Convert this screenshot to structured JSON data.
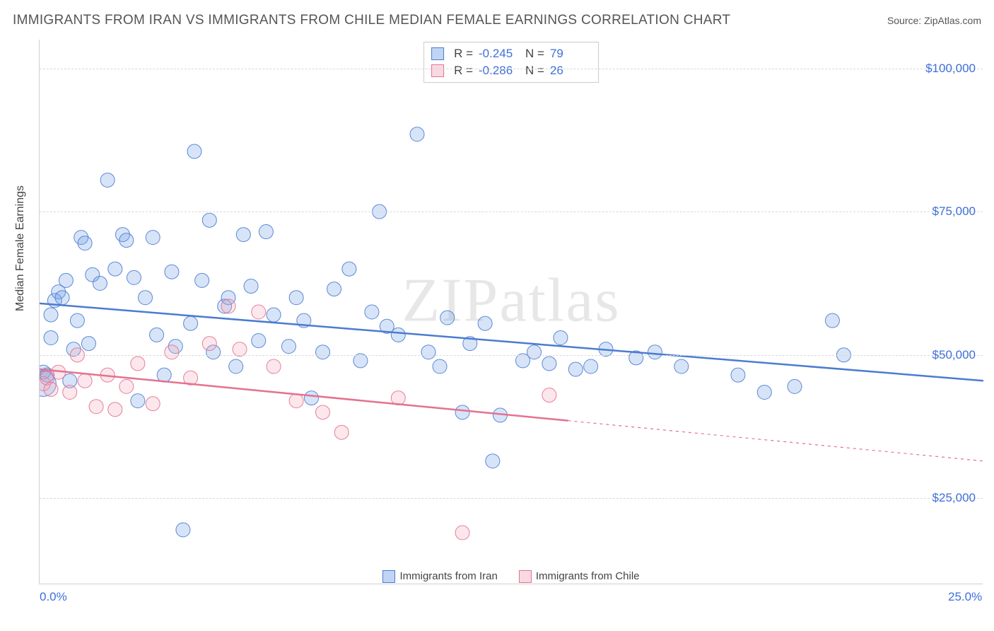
{
  "title": "IMMIGRANTS FROM IRAN VS IMMIGRANTS FROM CHILE MEDIAN FEMALE EARNINGS CORRELATION CHART",
  "source": "Source: ZipAtlas.com",
  "watermark": "ZIPatlas",
  "y_axis_title": "Median Female Earnings",
  "chart": {
    "type": "scatter",
    "xlim": [
      0.0,
      25.0
    ],
    "ylim": [
      10000,
      105000
    ],
    "x_ticks": [
      {
        "v": 0.0,
        "label": "0.0%"
      },
      {
        "v": 25.0,
        "label": "25.0%"
      }
    ],
    "y_ticks": [
      {
        "v": 25000,
        "label": "$25,000"
      },
      {
        "v": 50000,
        "label": "$50,000"
      },
      {
        "v": 75000,
        "label": "$75,000"
      },
      {
        "v": 100000,
        "label": "$100,000"
      }
    ],
    "grid_color": "#d8d8d8",
    "background_color": "#ffffff",
    "axis_color": "#cfcfcf",
    "tick_label_color": "#3f6fd8",
    "tick_fontsize": 17,
    "marker_radius": 10,
    "marker_fill_opacity": 0.28,
    "marker_stroke_opacity": 0.9,
    "marker_stroke_width": 1,
    "trend_line_width": 2.5
  },
  "series": [
    {
      "name": "Immigrants from Iran",
      "color": "#6f9fe6",
      "stroke": "#4b7cd0",
      "legend_label": "Immigrants from Iran",
      "R": "-0.245",
      "N": "79",
      "trend": {
        "x1": 0.0,
        "y1": 59000,
        "x2": 25.0,
        "y2": 45500,
        "dash_from_x": null
      },
      "points": [
        {
          "x": 0.1,
          "y": 45000,
          "r": 18
        },
        {
          "x": 0.1,
          "y": 47000
        },
        {
          "x": 0.2,
          "y": 46500
        },
        {
          "x": 0.3,
          "y": 53000
        },
        {
          "x": 0.3,
          "y": 57000
        },
        {
          "x": 0.4,
          "y": 59500
        },
        {
          "x": 0.5,
          "y": 61000
        },
        {
          "x": 0.6,
          "y": 60000
        },
        {
          "x": 0.7,
          "y": 63000
        },
        {
          "x": 0.8,
          "y": 45500
        },
        {
          "x": 0.9,
          "y": 51000
        },
        {
          "x": 1.0,
          "y": 56000
        },
        {
          "x": 1.1,
          "y": 70500
        },
        {
          "x": 1.2,
          "y": 69500
        },
        {
          "x": 1.3,
          "y": 52000
        },
        {
          "x": 1.4,
          "y": 64000
        },
        {
          "x": 1.6,
          "y": 62500
        },
        {
          "x": 1.8,
          "y": 80500
        },
        {
          "x": 2.0,
          "y": 65000
        },
        {
          "x": 2.2,
          "y": 71000
        },
        {
          "x": 2.3,
          "y": 70000
        },
        {
          "x": 2.5,
          "y": 63500
        },
        {
          "x": 2.6,
          "y": 42000
        },
        {
          "x": 2.8,
          "y": 60000
        },
        {
          "x": 3.0,
          "y": 70500
        },
        {
          "x": 3.1,
          "y": 53500
        },
        {
          "x": 3.3,
          "y": 46500
        },
        {
          "x": 3.5,
          "y": 64500
        },
        {
          "x": 3.6,
          "y": 51500
        },
        {
          "x": 3.8,
          "y": 19500
        },
        {
          "x": 4.0,
          "y": 55500
        },
        {
          "x": 4.1,
          "y": 85500
        },
        {
          "x": 4.3,
          "y": 63000
        },
        {
          "x": 4.5,
          "y": 73500
        },
        {
          "x": 4.6,
          "y": 50500
        },
        {
          "x": 4.9,
          "y": 58500
        },
        {
          "x": 5.0,
          "y": 60000
        },
        {
          "x": 5.2,
          "y": 48000
        },
        {
          "x": 5.4,
          "y": 71000
        },
        {
          "x": 5.6,
          "y": 62000
        },
        {
          "x": 5.8,
          "y": 52500
        },
        {
          "x": 6.0,
          "y": 71500
        },
        {
          "x": 6.2,
          "y": 57000
        },
        {
          "x": 6.6,
          "y": 51500
        },
        {
          "x": 6.8,
          "y": 60000
        },
        {
          "x": 7.0,
          "y": 56000
        },
        {
          "x": 7.2,
          "y": 42500
        },
        {
          "x": 7.5,
          "y": 50500
        },
        {
          "x": 7.8,
          "y": 61500
        },
        {
          "x": 8.2,
          "y": 65000
        },
        {
          "x": 8.5,
          "y": 49000
        },
        {
          "x": 8.8,
          "y": 57500
        },
        {
          "x": 9.0,
          "y": 75000
        },
        {
          "x": 9.2,
          "y": 55000
        },
        {
          "x": 9.5,
          "y": 53500
        },
        {
          "x": 10.0,
          "y": 88500
        },
        {
          "x": 10.3,
          "y": 50500
        },
        {
          "x": 10.6,
          "y": 48000
        },
        {
          "x": 10.8,
          "y": 56500
        },
        {
          "x": 11.2,
          "y": 40000
        },
        {
          "x": 11.4,
          "y": 52000
        },
        {
          "x": 11.8,
          "y": 55500
        },
        {
          "x": 12.0,
          "y": 31500
        },
        {
          "x": 12.2,
          "y": 39500
        },
        {
          "x": 12.8,
          "y": 49000
        },
        {
          "x": 13.1,
          "y": 50500
        },
        {
          "x": 13.5,
          "y": 48500
        },
        {
          "x": 13.8,
          "y": 53000
        },
        {
          "x": 14.2,
          "y": 47500
        },
        {
          "x": 14.6,
          "y": 48000
        },
        {
          "x": 15.0,
          "y": 51000
        },
        {
          "x": 15.8,
          "y": 49500
        },
        {
          "x": 16.3,
          "y": 50500
        },
        {
          "x": 17.0,
          "y": 48000
        },
        {
          "x": 18.5,
          "y": 46500
        },
        {
          "x": 19.2,
          "y": 43500
        },
        {
          "x": 21.0,
          "y": 56000
        },
        {
          "x": 21.3,
          "y": 50000
        },
        {
          "x": 20.0,
          "y": 44500
        }
      ]
    },
    {
      "name": "Immigrants from Chile",
      "color": "#f2a9bb",
      "stroke": "#e5718f",
      "legend_label": "Immigrants from Chile",
      "R": "-0.286",
      "N": "26",
      "trend": {
        "x1": 0.0,
        "y1": 47500,
        "x2": 25.0,
        "y2": 31500,
        "dash_from_x": 14.0
      },
      "points": [
        {
          "x": 0.1,
          "y": 45000
        },
        {
          "x": 0.2,
          "y": 46000
        },
        {
          "x": 0.3,
          "y": 44000
        },
        {
          "x": 0.5,
          "y": 47000
        },
        {
          "x": 0.8,
          "y": 43500
        },
        {
          "x": 1.0,
          "y": 50000
        },
        {
          "x": 1.2,
          "y": 45500
        },
        {
          "x": 1.5,
          "y": 41000
        },
        {
          "x": 1.8,
          "y": 46500
        },
        {
          "x": 2.0,
          "y": 40500
        },
        {
          "x": 2.3,
          "y": 44500
        },
        {
          "x": 2.6,
          "y": 48500
        },
        {
          "x": 3.0,
          "y": 41500
        },
        {
          "x": 3.5,
          "y": 50500
        },
        {
          "x": 4.0,
          "y": 46000
        },
        {
          "x": 4.5,
          "y": 52000
        },
        {
          "x": 5.0,
          "y": 58500
        },
        {
          "x": 5.3,
          "y": 51000
        },
        {
          "x": 5.8,
          "y": 57500
        },
        {
          "x": 6.2,
          "y": 48000
        },
        {
          "x": 6.8,
          "y": 42000
        },
        {
          "x": 7.5,
          "y": 40000
        },
        {
          "x": 8.0,
          "y": 36500
        },
        {
          "x": 9.5,
          "y": 42500
        },
        {
          "x": 11.2,
          "y": 19000
        },
        {
          "x": 13.5,
          "y": 43000
        }
      ]
    }
  ]
}
